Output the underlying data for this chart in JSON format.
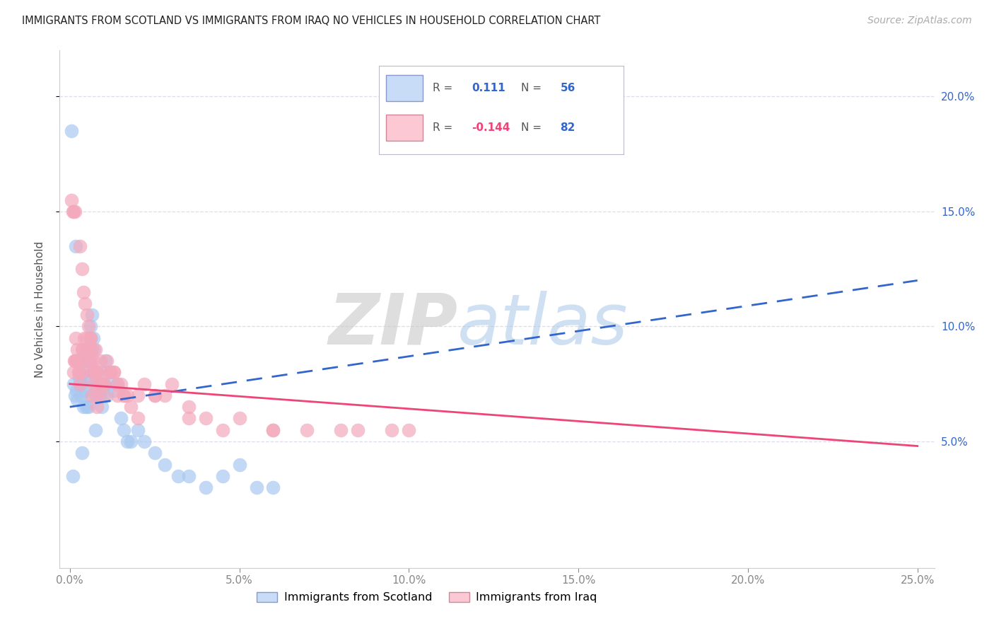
{
  "title": "IMMIGRANTS FROM SCOTLAND VS IMMIGRANTS FROM IRAQ NO VEHICLES IN HOUSEHOLD CORRELATION CHART",
  "source": "Source: ZipAtlas.com",
  "ylabel": "No Vehicles in Household",
  "xlabel_vals": [
    0.0,
    5.0,
    10.0,
    15.0,
    20.0,
    25.0
  ],
  "ylabel_vals": [
    5.0,
    10.0,
    15.0,
    20.0
  ],
  "xlim": [
    -0.3,
    25.5
  ],
  "ylim": [
    -0.5,
    22.0
  ],
  "scotland_R": 0.111,
  "scotland_N": 56,
  "iraq_R": -0.144,
  "iraq_N": 82,
  "scotland_color": "#a8c8f0",
  "iraq_color": "#f4a8bc",
  "scotland_line_color": "#3366cc",
  "iraq_line_color": "#ee4477",
  "background_color": "#ffffff",
  "grid_color": "#ddddee",
  "title_color": "#222222",
  "legend_box_color_scotland": "#c8dcf8",
  "legend_box_color_iraq": "#fcc8d4",
  "scotland_x": [
    0.05,
    0.1,
    0.15,
    0.18,
    0.2,
    0.22,
    0.25,
    0.28,
    0.3,
    0.32,
    0.35,
    0.38,
    0.4,
    0.42,
    0.45,
    0.48,
    0.5,
    0.52,
    0.55,
    0.58,
    0.6,
    0.65,
    0.7,
    0.72,
    0.75,
    0.78,
    0.8,
    0.85,
    0.9,
    0.95,
    1.0,
    1.05,
    1.1,
    1.2,
    1.3,
    1.4,
    1.5,
    1.6,
    1.7,
    1.8,
    2.0,
    2.2,
    2.5,
    2.8,
    3.2,
    3.5,
    4.0,
    4.5,
    5.0,
    5.5,
    6.0,
    0.08,
    0.35,
    0.55,
    0.75,
    1.1
  ],
  "scotland_y": [
    18.5,
    7.5,
    7.0,
    13.5,
    7.2,
    6.8,
    8.5,
    7.8,
    7.5,
    7.0,
    7.5,
    8.0,
    6.5,
    7.8,
    7.2,
    6.5,
    9.0,
    7.8,
    8.5,
    7.0,
    10.0,
    10.5,
    9.5,
    9.0,
    7.5,
    7.0,
    7.5,
    7.2,
    7.0,
    6.5,
    7.5,
    8.5,
    8.0,
    7.5,
    7.2,
    7.5,
    6.0,
    5.5,
    5.0,
    5.0,
    5.5,
    5.0,
    4.5,
    4.0,
    3.5,
    3.5,
    3.0,
    3.5,
    4.0,
    3.0,
    3.0,
    3.5,
    4.5,
    6.5,
    5.5,
    7.0
  ],
  "iraq_x": [
    0.05,
    0.08,
    0.1,
    0.12,
    0.15,
    0.18,
    0.2,
    0.22,
    0.25,
    0.28,
    0.3,
    0.32,
    0.35,
    0.38,
    0.4,
    0.42,
    0.45,
    0.48,
    0.5,
    0.52,
    0.55,
    0.58,
    0.6,
    0.62,
    0.65,
    0.68,
    0.7,
    0.72,
    0.75,
    0.78,
    0.8,
    0.85,
    0.9,
    0.95,
    1.0,
    1.1,
    1.2,
    1.3,
    1.4,
    1.5,
    1.6,
    1.7,
    1.8,
    2.0,
    2.2,
    2.5,
    2.8,
    3.0,
    3.5,
    4.0,
    5.0,
    6.0,
    7.0,
    8.5,
    10.0,
    0.1,
    0.2,
    0.3,
    0.4,
    0.5,
    0.6,
    0.7,
    0.8,
    0.9,
    1.0,
    1.2,
    1.4,
    1.6,
    2.0,
    2.5,
    3.5,
    4.5,
    6.0,
    8.0,
    9.5,
    0.15,
    0.35,
    0.5,
    0.65,
    0.8,
    1.0,
    1.3
  ],
  "iraq_y": [
    15.5,
    15.0,
    15.0,
    8.5,
    15.0,
    9.5,
    8.5,
    9.0,
    8.0,
    8.0,
    13.5,
    8.5,
    12.5,
    9.0,
    11.5,
    9.5,
    11.0,
    9.0,
    10.5,
    8.5,
    10.0,
    9.0,
    9.5,
    8.5,
    9.0,
    8.0,
    8.5,
    8.0,
    9.0,
    8.0,
    8.0,
    7.5,
    8.5,
    7.5,
    7.0,
    8.5,
    8.0,
    8.0,
    7.5,
    7.5,
    7.0,
    7.0,
    6.5,
    7.0,
    7.5,
    7.0,
    7.0,
    7.5,
    6.5,
    6.0,
    6.0,
    5.5,
    5.5,
    5.5,
    5.5,
    8.0,
    8.5,
    7.5,
    8.0,
    9.0,
    9.5,
    7.5,
    7.0,
    8.0,
    7.5,
    8.0,
    7.0,
    7.0,
    6.0,
    7.0,
    6.0,
    5.5,
    5.5,
    5.5,
    5.5,
    8.5,
    9.0,
    9.5,
    7.0,
    6.5,
    7.5,
    8.0
  ]
}
